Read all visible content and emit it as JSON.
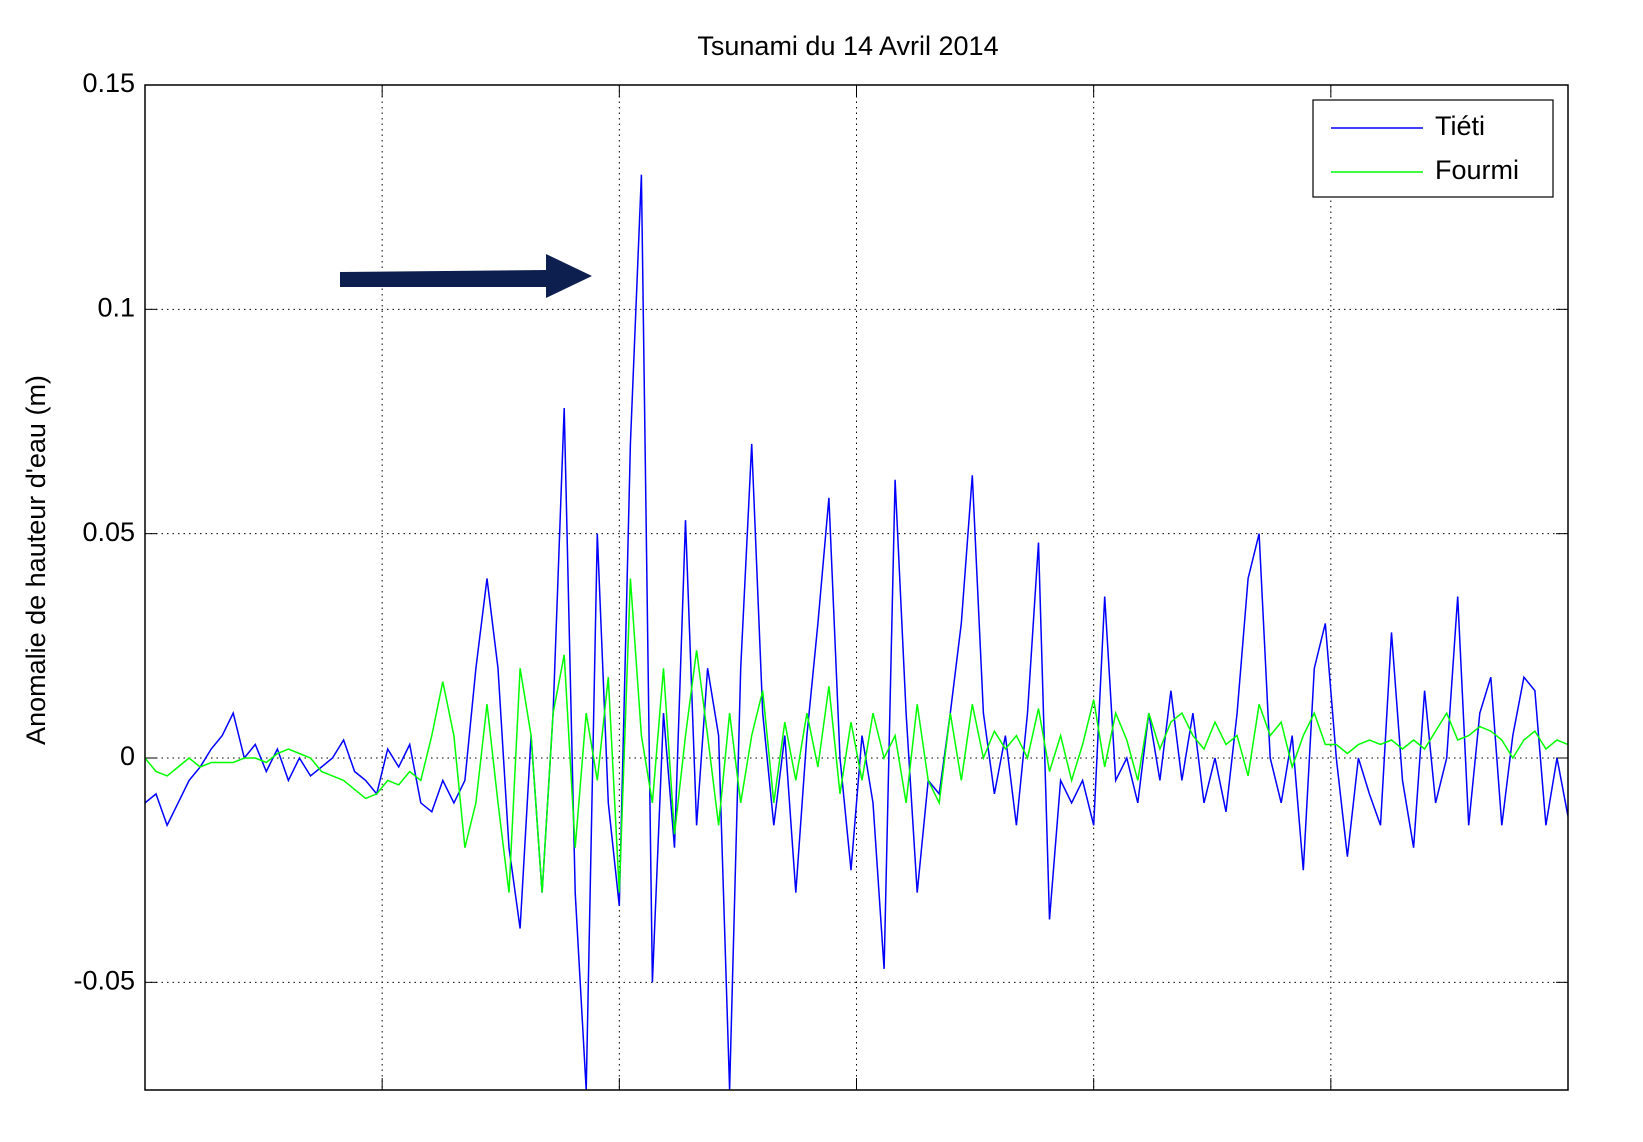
{
  "chart_data": {
    "type": "line",
    "title": "Tsunami du 14 Avril 2014",
    "y_label": "Anomalie de hauteur d'eau (m)",
    "ylim": [
      -0.074,
      0.15
    ],
    "yticks": [
      -0.05,
      0,
      0.05,
      0.1,
      0.15
    ],
    "grid": true,
    "legend": "upper right",
    "series": [
      {
        "name": "Tiéti",
        "color": "#0000ff",
        "values": [
          -0.01,
          -0.008,
          -0.015,
          -0.01,
          -0.005,
          -0.002,
          0.002,
          0.005,
          0.01,
          0,
          0.003,
          -0.003,
          0.002,
          -0.005,
          0,
          -0.004,
          -0.002,
          0,
          0.004,
          -0.003,
          -0.005,
          -0.008,
          0.002,
          -0.002,
          0.003,
          -0.01,
          -0.012,
          -0.005,
          -0.01,
          -0.005,
          0.02,
          0.04,
          0.02,
          -0.02,
          -0.038,
          0.005,
          -0.03,
          0.01,
          0.078,
          -0.03,
          -0.074,
          0.05,
          -0.01,
          -0.033,
          0.07,
          0.13,
          -0.05,
          0.01,
          -0.02,
          0.053,
          -0.015,
          0.02,
          0.005,
          -0.074,
          0.02,
          0.07,
          0.01,
          -0.015,
          0.005,
          -0.03,
          0.005,
          0.03,
          0.058,
          0,
          -0.025,
          0.005,
          -0.01,
          -0.047,
          0.062,
          0.01,
          -0.03,
          -0.005,
          -0.008,
          0.01,
          0.03,
          0.063,
          0.01,
          -0.008,
          0.005,
          -0.015,
          0.01,
          0.048,
          -0.036,
          -0.005,
          -0.01,
          -0.005,
          -0.015,
          0.036,
          -0.005,
          0,
          -0.01,
          0.01,
          -0.005,
          0.015,
          -0.005,
          0.01,
          -0.01,
          0,
          -0.012,
          0.01,
          0.04,
          0.05,
          0,
          -0.01,
          0.005,
          -0.025,
          0.02,
          0.03,
          0,
          -0.022,
          0,
          -0.008,
          -0.015,
          0.028,
          -0.005,
          -0.02,
          0.015,
          -0.01,
          0,
          0.036,
          -0.015,
          0.01,
          0.018,
          -0.015,
          0.005,
          0.018,
          0.015,
          -0.015,
          0,
          -0.013
        ]
      },
      {
        "name": "Fourmi",
        "color": "#00ff00",
        "values": [
          0,
          -0.003,
          -0.004,
          -0.002,
          0,
          -0.002,
          -0.001,
          -0.001,
          -0.001,
          0,
          0,
          -0.001,
          0.001,
          0.002,
          0.001,
          0,
          -0.003,
          -0.004,
          -0.005,
          -0.007,
          -0.009,
          -0.008,
          -0.005,
          -0.006,
          -0.003,
          -0.005,
          0.005,
          0.017,
          0.005,
          -0.02,
          -0.01,
          0.012,
          -0.01,
          -0.03,
          0.02,
          0.005,
          -0.03,
          0.01,
          0.023,
          -0.02,
          0.01,
          -0.005,
          0.018,
          -0.03,
          0.04,
          0.005,
          -0.01,
          0.02,
          -0.017,
          0.005,
          0.024,
          0.005,
          -0.015,
          0.01,
          -0.01,
          0.005,
          0.015,
          -0.01,
          0.008,
          -0.005,
          0.01,
          -0.002,
          0.016,
          -0.008,
          0.008,
          -0.005,
          0.01,
          0,
          0.005,
          -0.01,
          0.012,
          -0.005,
          -0.01,
          0.01,
          -0.005,
          0.012,
          0,
          0.006,
          0.002,
          0.005,
          0,
          0.011,
          -0.003,
          0.005,
          -0.005,
          0.003,
          0.013,
          -0.002,
          0.01,
          0.004,
          -0.005,
          0.01,
          0.002,
          0.008,
          0.01,
          0.005,
          0.002,
          0.008,
          0.003,
          0.005,
          -0.004,
          0.012,
          0.005,
          0.008,
          -0.002,
          0.005,
          0.01,
          0.003,
          0.003,
          0.001,
          0.003,
          0.004,
          0.003,
          0.004,
          0.002,
          0.004,
          0.002,
          0.006,
          0.01,
          0.004,
          0.005,
          0.007,
          0.006,
          0.004,
          0,
          0.004,
          0.006,
          0.002,
          0.004,
          0.003
        ]
      }
    ]
  }
}
